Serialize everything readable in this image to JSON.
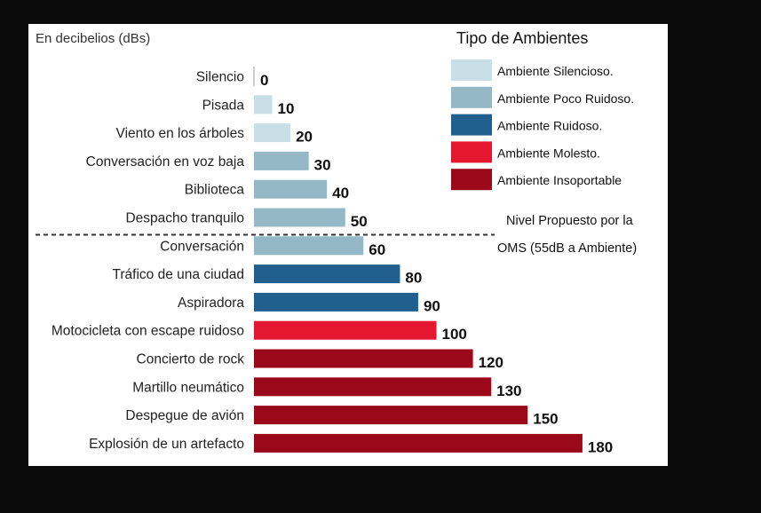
{
  "chart_data": {
    "type": "bar",
    "orientation": "horizontal",
    "unit_label": "En decibelios (dBs)",
    "categories": [
      "Silencio",
      "Pisada",
      "Viento en los árboles",
      "Conversación en voz baja",
      "Biblioteca",
      "Despacho tranquilo",
      "Conversación",
      "Tráfico de una ciudad",
      "Aspiradora",
      "Motocicleta con escape ruidoso",
      "Concierto de rock",
      "Martillo neumático",
      "Despegue de avión",
      "Explosión de un artefacto"
    ],
    "values": [
      0,
      10,
      20,
      30,
      40,
      50,
      60,
      80,
      90,
      100,
      120,
      130,
      150,
      180
    ],
    "value_labels": [
      "0",
      "10",
      "20",
      "30",
      "40",
      "50",
      "60",
      "80",
      "90",
      "100",
      "120",
      "130",
      "150",
      "180"
    ],
    "classes": [
      0,
      0,
      0,
      1,
      1,
      1,
      1,
      2,
      2,
      3,
      4,
      4,
      4,
      4
    ],
    "xlim": [
      0,
      180
    ],
    "grid": false,
    "legend": {
      "title": "Tipo de Ambientes",
      "placement": "top-right",
      "items": [
        {
          "label": "Ambiente Silencioso.",
          "color": "#c9dfe8"
        },
        {
          "label": "Ambiente Poco Ruidoso.",
          "color": "#94b8c6"
        },
        {
          "label": "Ambiente Ruidoso.",
          "color": "#215f8e"
        },
        {
          "label": "Ambiente Molesto.",
          "color": "#e41730"
        },
        {
          "label": "Ambiente Insoportable",
          "color": "#99091a"
        }
      ]
    },
    "reference_line": {
      "value_db": 55,
      "note_line1": "Nivel Propuesto por la",
      "note_line2": "OMS (55dB a Ambiente)"
    }
  },
  "colors": {
    "background": "#ffffff",
    "page": "#0b0b0b",
    "text": "#222222"
  }
}
